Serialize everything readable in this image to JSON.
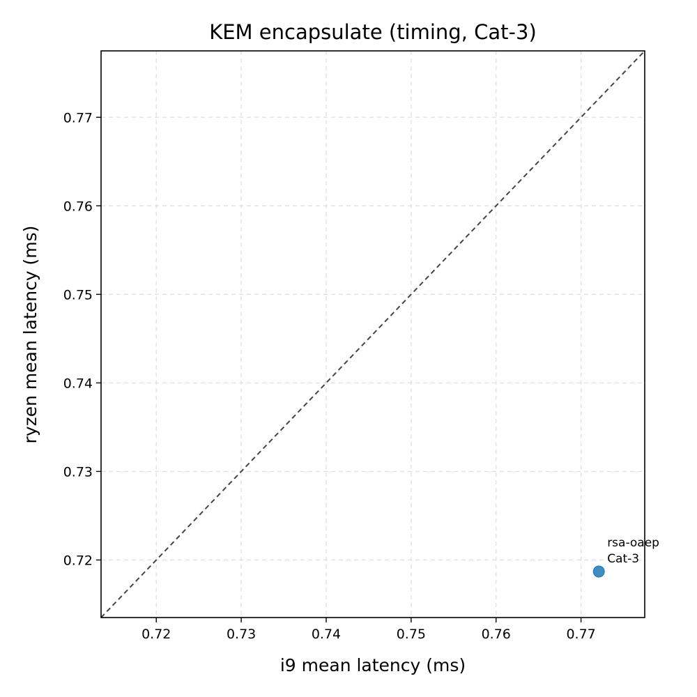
{
  "chart_data": {
    "type": "scatter",
    "title": "KEM encapsulate (timing, Cat-3)",
    "xlabel": "i9 mean latency (ms)",
    "ylabel": "ryzen mean latency (ms)",
    "xlim": [
      0.7135,
      0.7775
    ],
    "ylim": [
      0.7135,
      0.7775
    ],
    "xticks": [
      0.72,
      0.73,
      0.74,
      0.75,
      0.76,
      0.77
    ],
    "xtick_labels": [
      "0.72",
      "0.73",
      "0.74",
      "0.75",
      "0.76",
      "0.77"
    ],
    "yticks": [
      0.72,
      0.73,
      0.74,
      0.75,
      0.76,
      0.77
    ],
    "ytick_labels": [
      "0.72",
      "0.73",
      "0.74",
      "0.75",
      "0.76",
      "0.77"
    ],
    "grid": true,
    "reference_line": "y = x (dashed)",
    "points": [
      {
        "x": 0.7721,
        "y": 0.7187,
        "label_lines": [
          "rsa-oaep",
          "Cat-3"
        ]
      }
    ],
    "colors": {
      "point": "#1f77b4",
      "reference_line": "#444444",
      "grid": "#e0e0e0"
    }
  }
}
